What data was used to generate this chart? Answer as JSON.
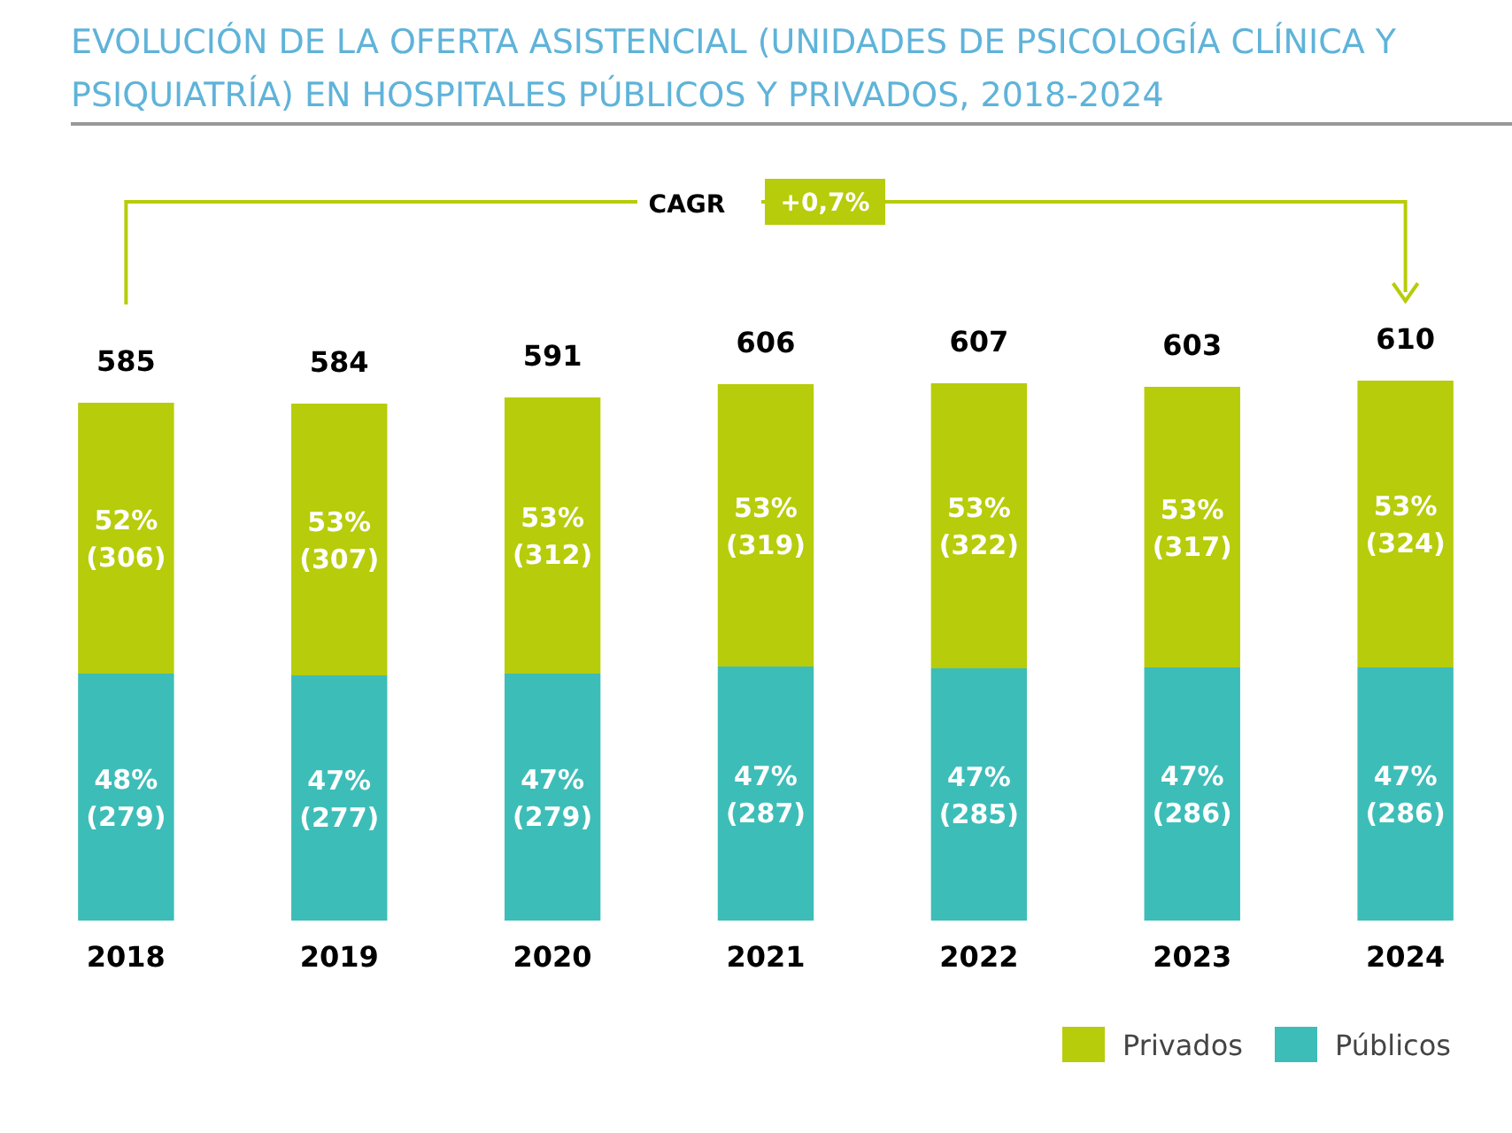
{
  "chart_data": {
    "type": "bar",
    "title": "EVOLUCIÓN DE LA OFERTA ASISTENCIAL (UNIDADES DE PSICOLOGÍA CLÍNICA Y PSIQUIATRÍA) EN HOSPITALES PÚBLICOS Y PRIVADOS, 2018-2024",
    "categories": [
      "2018",
      "2019",
      "2020",
      "2021",
      "2022",
      "2023",
      "2024"
    ],
    "stacked": true,
    "series": [
      {
        "name": "Públicos",
        "color": "#3dbdb8",
        "values": [
          279,
          277,
          279,
          287,
          285,
          286,
          286
        ],
        "value_labels": [
          "48%\n(279)",
          "47%\n(277)",
          "47%\n(279)",
          "47%\n(287)",
          "47%\n(285)",
          "47%\n(286)",
          "47%\n(286)"
        ]
      },
      {
        "name": "Privados",
        "color": "#b7cc0a",
        "values": [
          306,
          307,
          312,
          319,
          322,
          317,
          324
        ],
        "value_labels": [
          "52%\n(306)",
          "53%\n(307)",
          "53%\n(312)",
          "53%\n(319)",
          "53%\n(322)",
          "53%\n(317)",
          "53%\n(324)"
        ]
      }
    ],
    "totals": [
      "585",
      "584",
      "591",
      "606",
      "607",
      "603",
      "610"
    ],
    "annotations": [
      "CAGR",
      "+0,7%"
    ],
    "legend": "bottom right"
  }
}
